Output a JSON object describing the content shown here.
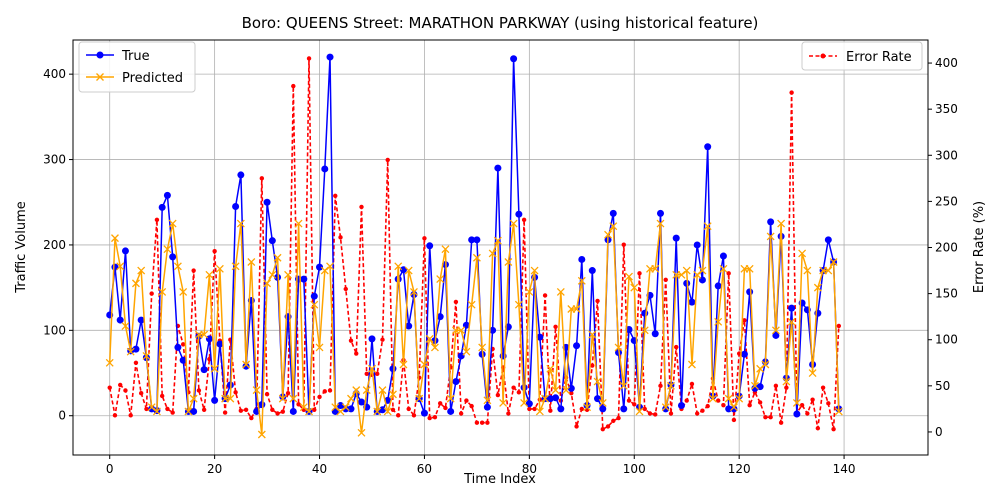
{
  "chart_data": {
    "type": "line",
    "title": "Boro: QUEENS Street: MARATHON PARKWAY (using historical feature)",
    "xlabel": "Time Index",
    "ylabel": "Traffic Volume",
    "y2label": "Error Rate (%)",
    "xlim": [
      -7,
      156
    ],
    "ylim": [
      -46,
      440
    ],
    "y2lim": [
      -25,
      425
    ],
    "xticks": [
      0,
      20,
      40,
      60,
      80,
      100,
      120,
      140
    ],
    "yticks": [
      0,
      100,
      200,
      300,
      400
    ],
    "y2ticks": [
      0,
      50,
      100,
      150,
      200,
      250,
      300,
      350,
      400
    ],
    "grid": true,
    "legend_left": {
      "placement": "top-left",
      "entries": [
        "True",
        "Predicted"
      ]
    },
    "legend_right": {
      "placement": "top-right",
      "entries": [
        "Error Rate"
      ]
    },
    "colors": {
      "true": "#0000ff",
      "predicted": "#ffa500",
      "error": "#ff0000"
    },
    "series": [
      {
        "name": "True",
        "axis": "left",
        "color": "#0000ff",
        "values": [
          118,
          174,
          112,
          193,
          76,
          78,
          112,
          68,
          8,
          6,
          244,
          258,
          186,
          80,
          65,
          5,
          5,
          93,
          54,
          90,
          18,
          84,
          20,
          36,
          245,
          282,
          58,
          135,
          5,
          13,
          250,
          205,
          162,
          22,
          116,
          5,
          160,
          160,
          5,
          140,
          174,
          289,
          420,
          5,
          12,
          8,
          8,
          26,
          16,
          10,
          90,
          5,
          7,
          18,
          55,
          160,
          171,
          105,
          142,
          20,
          3,
          199,
          88,
          116,
          177,
          5,
          40,
          70,
          106,
          206,
          206,
          72,
          10,
          100,
          290,
          70,
          104,
          418,
          236,
          33,
          14,
          162,
          92,
          20,
          20,
          21,
          8,
          80,
          32,
          82,
          183,
          12,
          170,
          20,
          8,
          206,
          237,
          74,
          8,
          101,
          88,
          10,
          120,
          141,
          96,
          237,
          8,
          36,
          208,
          12,
          155,
          133,
          200,
          159,
          315,
          23,
          152,
          187,
          8,
          8,
          23,
          72,
          145,
          32,
          34,
          63,
          227,
          94,
          210,
          44,
          126,
          2,
          132,
          124,
          60,
          120,
          170,
          206,
          180,
          8
        ]
      },
      {
        "name": "Predicted",
        "axis": "left",
        "color": "#ffa500",
        "values": [
          62,
          208,
          175,
          105,
          75,
          155,
          170,
          70,
          10,
          5,
          145,
          195,
          225,
          175,
          145,
          5,
          20,
          95,
          95,
          165,
          55,
          172,
          20,
          20,
          175,
          225,
          60,
          180,
          30,
          -22,
          155,
          165,
          185,
          20,
          165,
          20,
          225,
          10,
          5,
          130,
          80,
          170,
          175,
          10,
          5,
          10,
          20,
          30,
          -20,
          30,
          55,
          5,
          30,
          5,
          25,
          175,
          60,
          170,
          145,
          20,
          60,
          90,
          80,
          160,
          195,
          20,
          100,
          100,
          75,
          130,
          185,
          80,
          18,
          190,
          205,
          15,
          180,
          225,
          130,
          15,
          145,
          170,
          5,
          20,
          55,
          30,
          145,
          30,
          125,
          125,
          158,
          10,
          95,
          40,
          15,
          212,
          222,
          80,
          35,
          163,
          150,
          5,
          100,
          172,
          172,
          225,
          10,
          35,
          165,
          165,
          170,
          60,
          165,
          170,
          222,
          20,
          110,
          172,
          20,
          10,
          20,
          172,
          172,
          35,
          55,
          60,
          210,
          100,
          225,
          40,
          110,
          15,
          190,
          170,
          50,
          150,
          170,
          170,
          180,
          5
        ]
      },
      {
        "name": "Error Rate",
        "axis": "right",
        "color": "#ff0000",
        "values": [
          48,
          18,
          51,
          45,
          18,
          75,
          42,
          25,
          150,
          230,
          39,
          25,
          21,
          115,
          95,
          43,
          175,
          45,
          24,
          79,
          196,
          99,
          21,
          100,
          43,
          23,
          24,
          15,
          25,
          275,
          41,
          24,
          20,
          22,
          42,
          375,
          30,
          24,
          405,
          24,
          38,
          44,
          45,
          256,
          211,
          155,
          99,
          85,
          244,
          63,
          62,
          63,
          100,
          295,
          24,
          18,
          78,
          25,
          18,
          59,
          210,
          15,
          16,
          31,
          26,
          70,
          141,
          20,
          34,
          28,
          10,
          10,
          10,
          90,
          40,
          70,
          20,
          48,
          43,
          230,
          25,
          25,
          35,
          148,
          23,
          114,
          34,
          59,
          42,
          6,
          25,
          24,
          72,
          142,
          3,
          6,
          12,
          15,
          203,
          34,
          30,
          172,
          25,
          20,
          19,
          50,
          165,
          20,
          92,
          25,
          34,
          52,
          20,
          23,
          28,
          58,
          34,
          29,
          172,
          13,
          85,
          121,
          29,
          43,
          32,
          16,
          16,
          50,
          10,
          48,
          368,
          21,
          29,
          20,
          35,
          4,
          48,
          31,
          3,
          115
        ]
      }
    ]
  }
}
